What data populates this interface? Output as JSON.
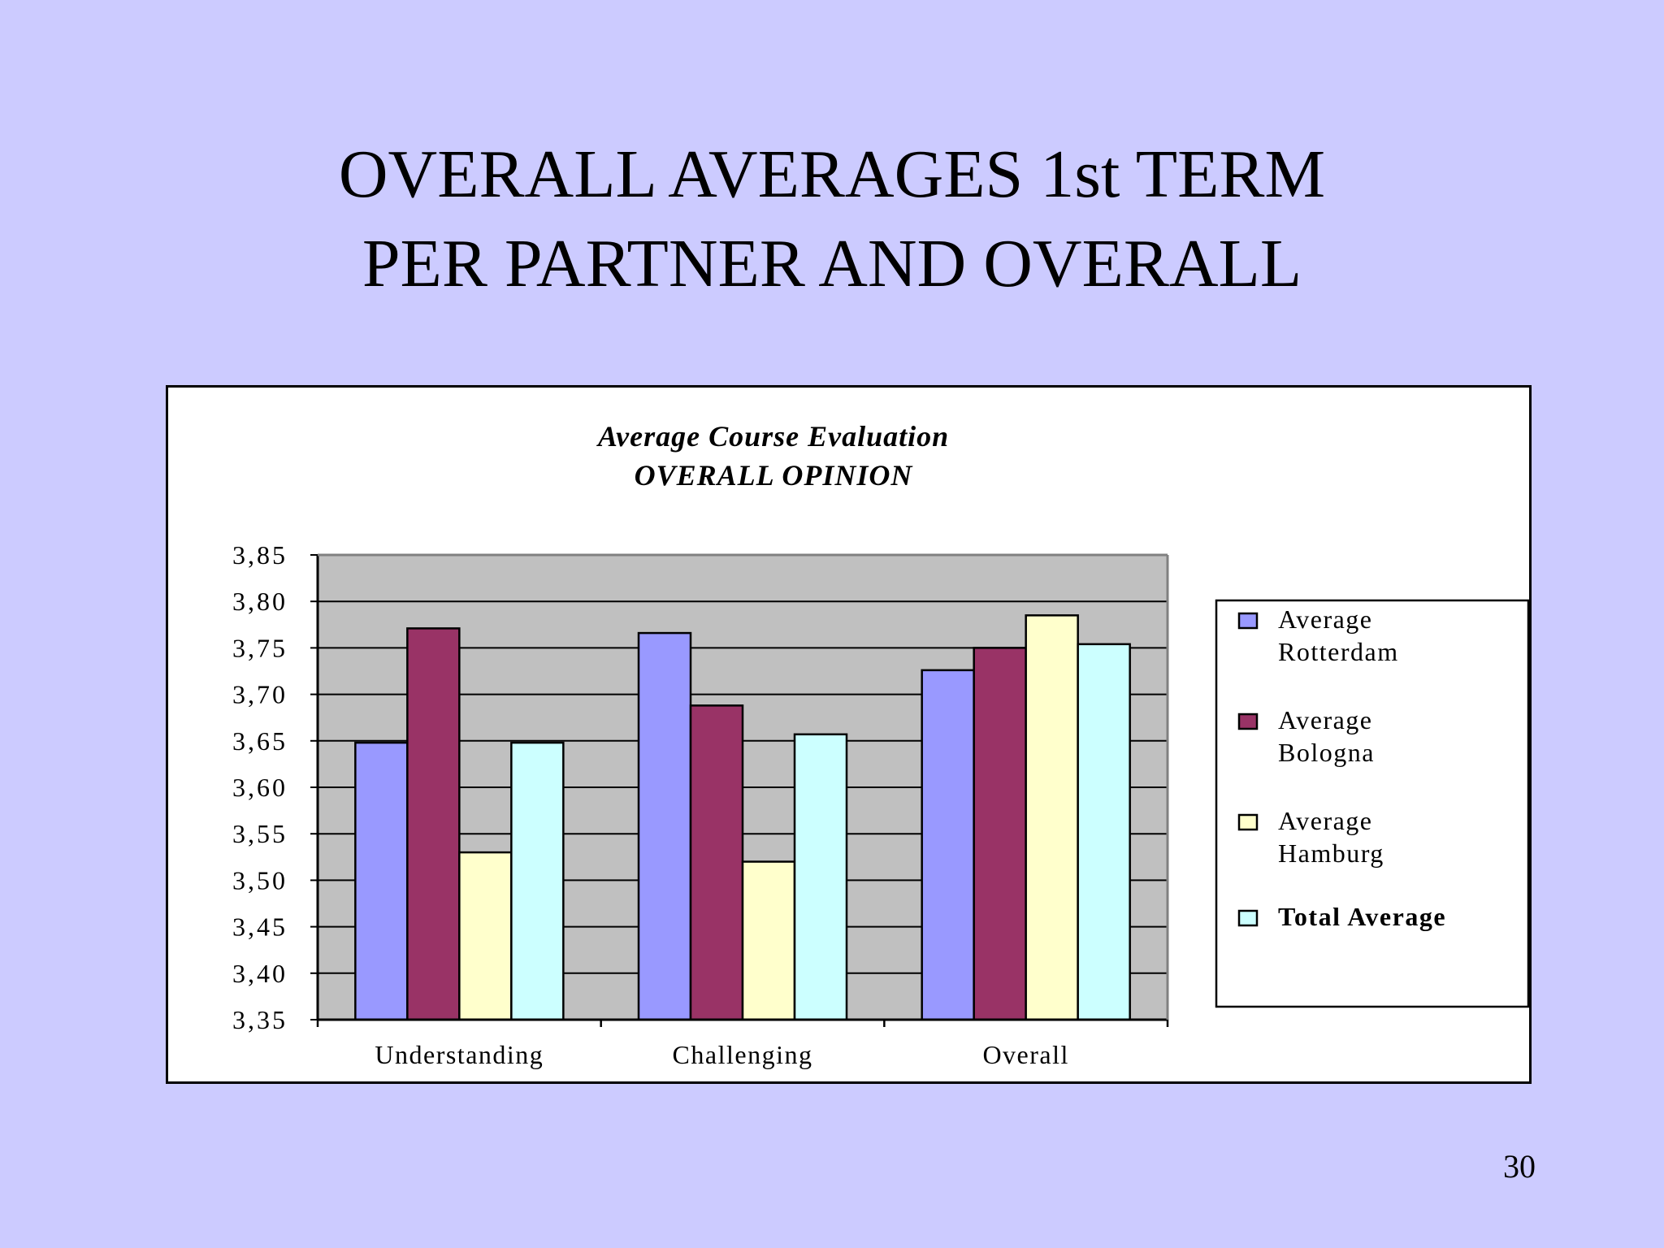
{
  "slide": {
    "title_line1": "OVERALL AVERAGES 1st TERM",
    "title_line2": "PER PARTNER AND OVERALL",
    "page_number": "30"
  },
  "chart_data": {
    "type": "bar",
    "title": "Average Course Evaluation",
    "subtitle": "OVERALL OPINION",
    "categories": [
      "Understanding",
      "Challenging",
      "Overall"
    ],
    "series": [
      {
        "name": "Average Rotterdam",
        "name_lines": [
          "Average",
          "Rotterdam"
        ],
        "color": "#9999ff",
        "values": [
          3.648,
          3.766,
          3.726
        ]
      },
      {
        "name": "Average Bologna",
        "name_lines": [
          "Average",
          "Bologna"
        ],
        "color": "#993366",
        "values": [
          3.771,
          3.688,
          3.75
        ]
      },
      {
        "name": "Average Hamburg",
        "name_lines": [
          "Average",
          "Hamburg"
        ],
        "color": "#ffffcc",
        "values": [
          3.53,
          3.52,
          3.785
        ]
      },
      {
        "name": "Total Average",
        "name_lines": [
          "Total Average"
        ],
        "color": "#ccffff",
        "values": [
          3.648,
          3.657,
          3.754
        ]
      }
    ],
    "ylim": [
      3.35,
      3.85
    ],
    "yticks": [
      "3,35",
      "3,40",
      "3,45",
      "3,50",
      "3,55",
      "3,60",
      "3,65",
      "3,70",
      "3,75",
      "3,80",
      "3,85"
    ],
    "xlabel": "",
    "ylabel": "",
    "grid": true,
    "plot_background": "#c0c0c0",
    "legend_position": "right"
  }
}
